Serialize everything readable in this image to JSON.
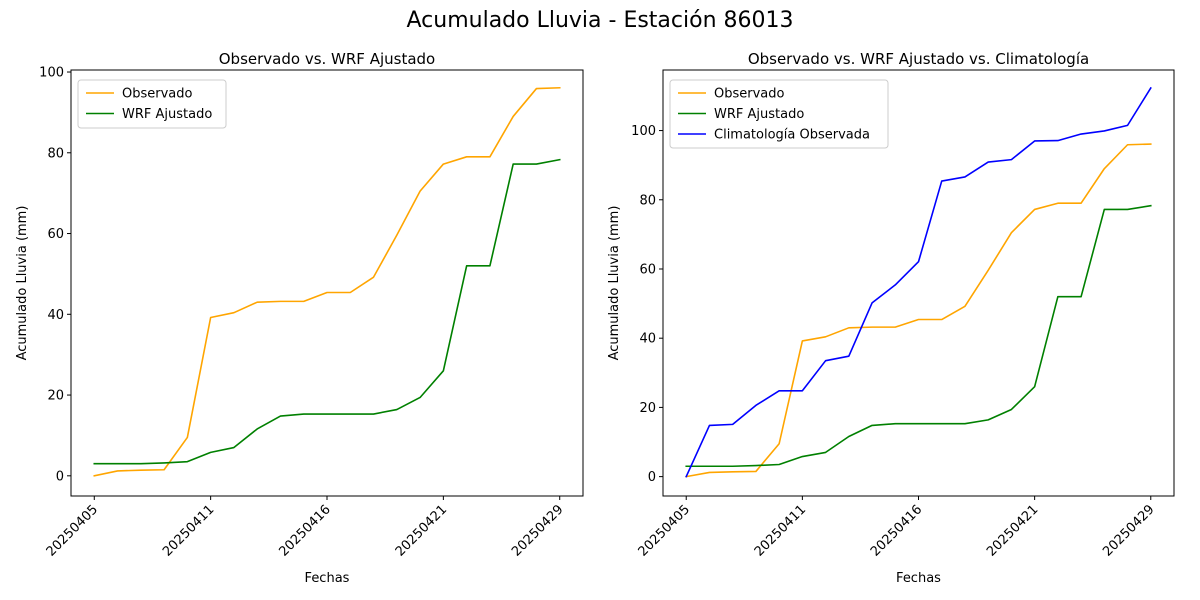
{
  "figure": {
    "title": "Acumulado Lluvia - Estación 86013"
  },
  "chart_data": [
    {
      "type": "line",
      "title": "Observado vs. WRF Ajustado",
      "xlabel": "Fechas",
      "ylabel": "Acumulado Lluvia (mm)",
      "ylim": [
        -5,
        100.5
      ],
      "yticks": [
        0,
        20,
        40,
        60,
        80,
        100
      ],
      "xlim": [
        -1,
        21
      ],
      "xticks": [
        0,
        5,
        10,
        15,
        20
      ],
      "xtick_labels": [
        "20250405",
        "20250411",
        "20250416",
        "20250421",
        "20250429"
      ],
      "legend_position": "upper-left",
      "grid": false,
      "series": [
        {
          "name": "Observado",
          "color": "#ffa500",
          "x": [
            0,
            1,
            2,
            3,
            4,
            5,
            6,
            7,
            8,
            9,
            10,
            11,
            12,
            13,
            14,
            15,
            16,
            17,
            18,
            19,
            20
          ],
          "y": [
            0,
            1.2,
            1.4,
            1.5,
            9.5,
            39.2,
            40.4,
            43.0,
            43.2,
            43.2,
            45.4,
            45.4,
            49.2,
            59.6,
            70.5,
            77.2,
            79.0,
            79.0,
            89.0,
            95.9,
            96.1
          ]
        },
        {
          "name": "WRF Ajustado",
          "color": "#008000",
          "x": [
            0,
            1,
            2,
            3,
            4,
            5,
            6,
            7,
            8,
            9,
            10,
            11,
            12,
            13,
            14,
            15,
            16,
            17,
            18,
            19,
            20
          ],
          "y": [
            3.0,
            3.0,
            3.0,
            3.2,
            3.5,
            5.8,
            7.0,
            11.6,
            14.8,
            15.3,
            15.3,
            15.3,
            15.3,
            16.4,
            19.4,
            26.0,
            52.0,
            52.0,
            77.2,
            77.2,
            78.3
          ]
        }
      ]
    },
    {
      "type": "line",
      "title": "Observado vs. WRF Ajustado vs. Climatología",
      "xlabel": "Fechas",
      "ylabel": "Acumulado Lluvia (mm)",
      "ylim": [
        -5.6,
        117.5
      ],
      "yticks": [
        0,
        20,
        40,
        60,
        80,
        100
      ],
      "xlim": [
        -1,
        21
      ],
      "xticks": [
        0,
        5,
        10,
        15,
        20
      ],
      "xtick_labels": [
        "20250405",
        "20250411",
        "20250416",
        "20250421",
        "20250429"
      ],
      "legend_position": "upper-left",
      "grid": false,
      "series": [
        {
          "name": "Observado",
          "color": "#ffa500",
          "x": [
            0,
            1,
            2,
            3,
            4,
            5,
            6,
            7,
            8,
            9,
            10,
            11,
            12,
            13,
            14,
            15,
            16,
            17,
            18,
            19,
            20
          ],
          "y": [
            0,
            1.2,
            1.4,
            1.5,
            9.5,
            39.2,
            40.4,
            43.0,
            43.2,
            43.2,
            45.4,
            45.4,
            49.2,
            59.6,
            70.5,
            77.2,
            79.0,
            79.0,
            89.0,
            95.9,
            96.1
          ]
        },
        {
          "name": "WRF Ajustado",
          "color": "#008000",
          "x": [
            0,
            1,
            2,
            3,
            4,
            5,
            6,
            7,
            8,
            9,
            10,
            11,
            12,
            13,
            14,
            15,
            16,
            17,
            18,
            19,
            20
          ],
          "y": [
            3.0,
            3.0,
            3.0,
            3.2,
            3.5,
            5.8,
            7.0,
            11.6,
            14.8,
            15.3,
            15.3,
            15.3,
            15.3,
            16.4,
            19.4,
            26.0,
            52.0,
            52.0,
            77.2,
            77.2,
            78.3
          ]
        },
        {
          "name": "Climatología Observada",
          "color": "#0000ff",
          "x": [
            0,
            1,
            2,
            3,
            4,
            5,
            6,
            7,
            8,
            9,
            10,
            11,
            12,
            13,
            14,
            15,
            16,
            17,
            18,
            19,
            20
          ],
          "y": [
            0,
            14.8,
            15.1,
            20.6,
            24.8,
            24.8,
            33.5,
            34.8,
            50.2,
            55.4,
            62.1,
            85.4,
            86.6,
            90.9,
            91.6,
            97.0,
            97.1,
            99.0,
            99.9,
            101.5,
            112.3
          ]
        }
      ]
    }
  ]
}
